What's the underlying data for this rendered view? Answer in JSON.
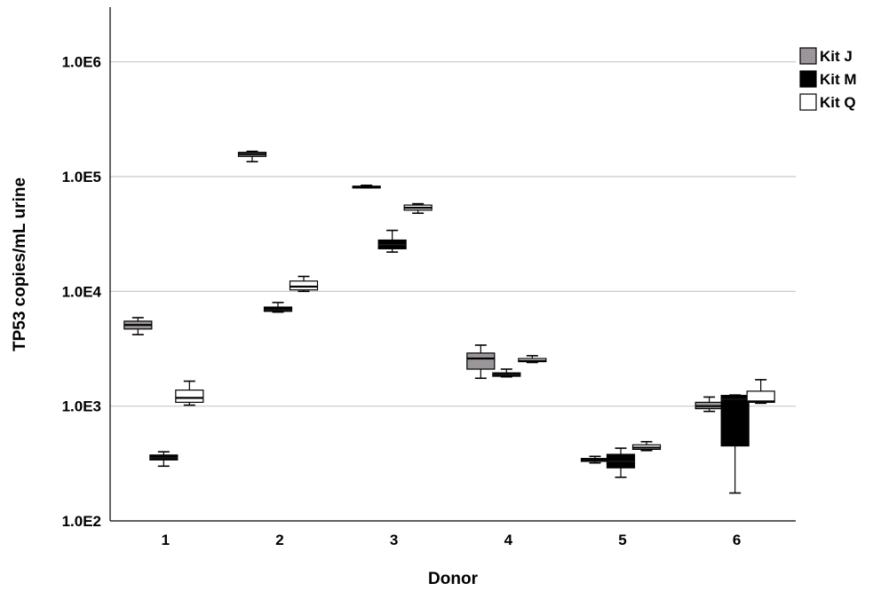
{
  "chart_data": {
    "type": "boxplot",
    "title": "",
    "xlabel": "Donor",
    "ylabel": "TP53 copies/mL urine",
    "y_scale": "log",
    "ylim": [
      100,
      3000000
    ],
    "yticks": [
      100,
      1000,
      10000,
      100000,
      1000000
    ],
    "ytick_labels": [
      "1.0E2",
      "1.0E3",
      "1.0E4",
      "1.0E5",
      "1.0E6"
    ],
    "categories": [
      "1",
      "2",
      "3",
      "4",
      "5",
      "6"
    ],
    "grid": "horizontal",
    "legend_position": "right",
    "series": [
      {
        "name": "Kit J",
        "color": "#9b9699",
        "boxes": [
          {
            "min": 4200,
            "q1": 4700,
            "median": 5100,
            "q3": 5500,
            "max": 5900
          },
          {
            "min": 135000,
            "q1": 150000,
            "median": 157000,
            "q3": 163000,
            "max": 166000
          },
          {
            "min": 80000,
            "q1": 81000,
            "median": 81500,
            "q3": 82500,
            "max": 84000
          },
          {
            "min": 1750,
            "q1": 2100,
            "median": 2600,
            "q3": 2900,
            "max": 3400
          },
          {
            "min": 320,
            "q1": 330,
            "median": 340,
            "q3": 350,
            "max": 365
          },
          {
            "min": 900,
            "q1": 950,
            "median": 1000,
            "q3": 1080,
            "max": 1200
          }
        ]
      },
      {
        "name": "Kit M",
        "color": "#000000",
        "boxes": [
          {
            "min": 300,
            "q1": 340,
            "median": 355,
            "q3": 375,
            "max": 400
          },
          {
            "min": 6600,
            "q1": 6700,
            "median": 6900,
            "q3": 7300,
            "max": 8000
          },
          {
            "min": 22000,
            "q1": 23500,
            "median": 25500,
            "q3": 28000,
            "max": 34000
          },
          {
            "min": 1800,
            "q1": 1820,
            "median": 1880,
            "q3": 1950,
            "max": 2100
          },
          {
            "min": 240,
            "q1": 290,
            "median": 330,
            "q3": 380,
            "max": 430
          },
          {
            "min": 175,
            "q1": 450,
            "median": 1150,
            "q3": 1240,
            "max": 1250
          }
        ]
      },
      {
        "name": "Kit Q",
        "color": "#ffffff",
        "boxes": [
          {
            "min": 1020,
            "q1": 1080,
            "median": 1180,
            "q3": 1380,
            "max": 1650
          },
          {
            "min": 10000,
            "q1": 10300,
            "median": 11000,
            "q3": 12300,
            "max": 13500
          },
          {
            "min": 48000,
            "q1": 51000,
            "median": 53500,
            "q3": 56500,
            "max": 58000
          },
          {
            "min": 2400,
            "q1": 2440,
            "median": 2480,
            "q3": 2600,
            "max": 2750
          },
          {
            "min": 410,
            "q1": 420,
            "median": 435,
            "q3": 460,
            "max": 490
          },
          {
            "min": 1060,
            "q1": 1080,
            "median": 1100,
            "q3": 1350,
            "max": 1700
          }
        ]
      }
    ]
  }
}
